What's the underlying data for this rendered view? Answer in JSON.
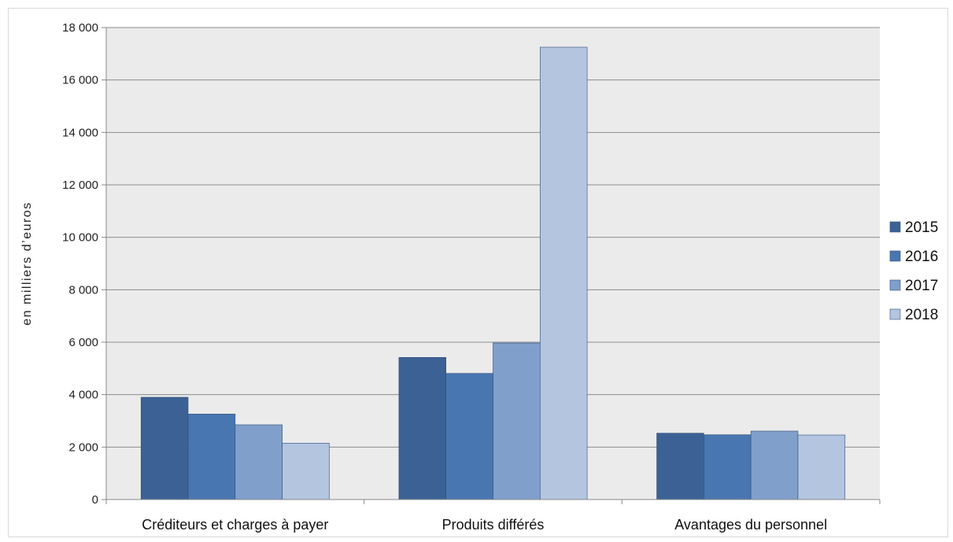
{
  "chart_data": {
    "type": "bar",
    "categories": [
      "Créditeurs et charges à payer",
      "Produits différés",
      "Avantages du personnel"
    ],
    "series": [
      {
        "name": "2015",
        "values": [
          3900,
          5420,
          2530
        ],
        "color": "#3c6295"
      },
      {
        "name": "2016",
        "values": [
          3260,
          4810,
          2470
        ],
        "color": "#4876b0"
      },
      {
        "name": "2017",
        "values": [
          2850,
          5970,
          2610
        ],
        "color": "#809fcb"
      },
      {
        "name": "2018",
        "values": [
          2150,
          17250,
          2460
        ],
        "color": "#b4c5e0"
      }
    ],
    "yticks": [
      "0",
      "2 000",
      "4 000",
      "6 000",
      "8 000",
      "10 000",
      "12 000",
      "14 000",
      "16 000",
      "18 000"
    ],
    "ylabel": "en milliers d’euros",
    "ylim": [
      0,
      18000
    ],
    "grid": true,
    "legend_position": "right",
    "plot_background": "#ebebeb",
    "gridline_color": "#8c8c8c"
  }
}
